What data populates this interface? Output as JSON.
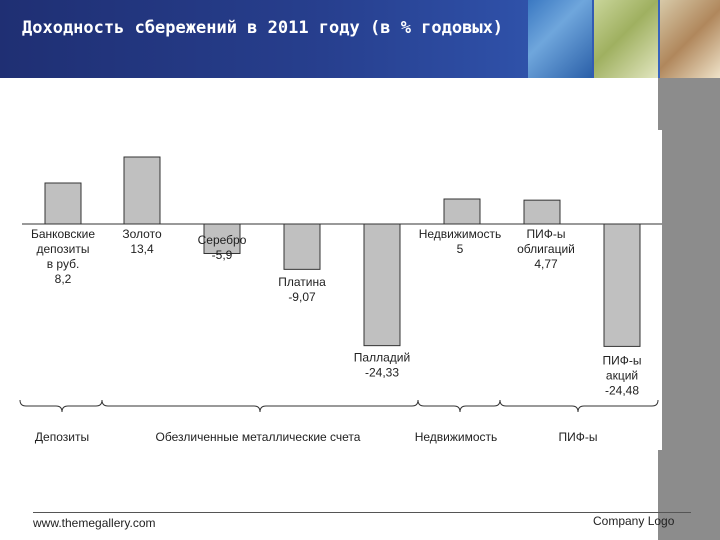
{
  "header": {
    "title": "Доходность сбережений в 2011 году (в % годовых)"
  },
  "chart_data": {
    "type": "bar",
    "title": "Доходность сбережений в 2011 году (в % годовых)",
    "bars": [
      {
        "name": "bank-deposits",
        "label": [
          "Банковские",
          "депозиты",
          "в руб."
        ],
        "value_label": "8,2",
        "value": 8.2
      },
      {
        "name": "gold",
        "label": [
          "Золото"
        ],
        "value_label": "13,4",
        "value": 13.4
      },
      {
        "name": "silver",
        "label": [
          "Серебро"
        ],
        "value_label": "-5,9",
        "value": -5.9
      },
      {
        "name": "platinum",
        "label": [
          "Платина"
        ],
        "value_label": "-9,07",
        "value": -9.07
      },
      {
        "name": "palladium",
        "label": [
          "Палладий"
        ],
        "value_label": "-24,33",
        "value": -24.33
      },
      {
        "name": "real-estate",
        "label": [
          "Недвижимость"
        ],
        "value_label": "5",
        "value": 5
      },
      {
        "name": "bond-funds",
        "label": [
          "ПИФ-ы",
          "облигаций"
        ],
        "value_label": "4,77",
        "value": 4.77
      },
      {
        "name": "stock-funds",
        "label": [
          "ПИФ-ы",
          "акций"
        ],
        "value_label": "-24,48",
        "value": -24.48
      }
    ],
    "groups": [
      {
        "name": "deposits",
        "label": "Депозиты"
      },
      {
        "name": "metal-accounts",
        "label": "Обезличенные металлические счета"
      },
      {
        "name": "real-estate",
        "label": "Недвижимость"
      },
      {
        "name": "funds",
        "label": "ПИФ-ы"
      }
    ],
    "xlabel": "",
    "ylabel": "",
    "grid": false,
    "legend": "none"
  },
  "footer": {
    "website": "www.themegallery.com",
    "logo_text": "Company Logo"
  },
  "colors": {
    "header_bg": "#273f8e",
    "bar_fill": "#c0c0c0",
    "bar_stroke": "#333333"
  }
}
